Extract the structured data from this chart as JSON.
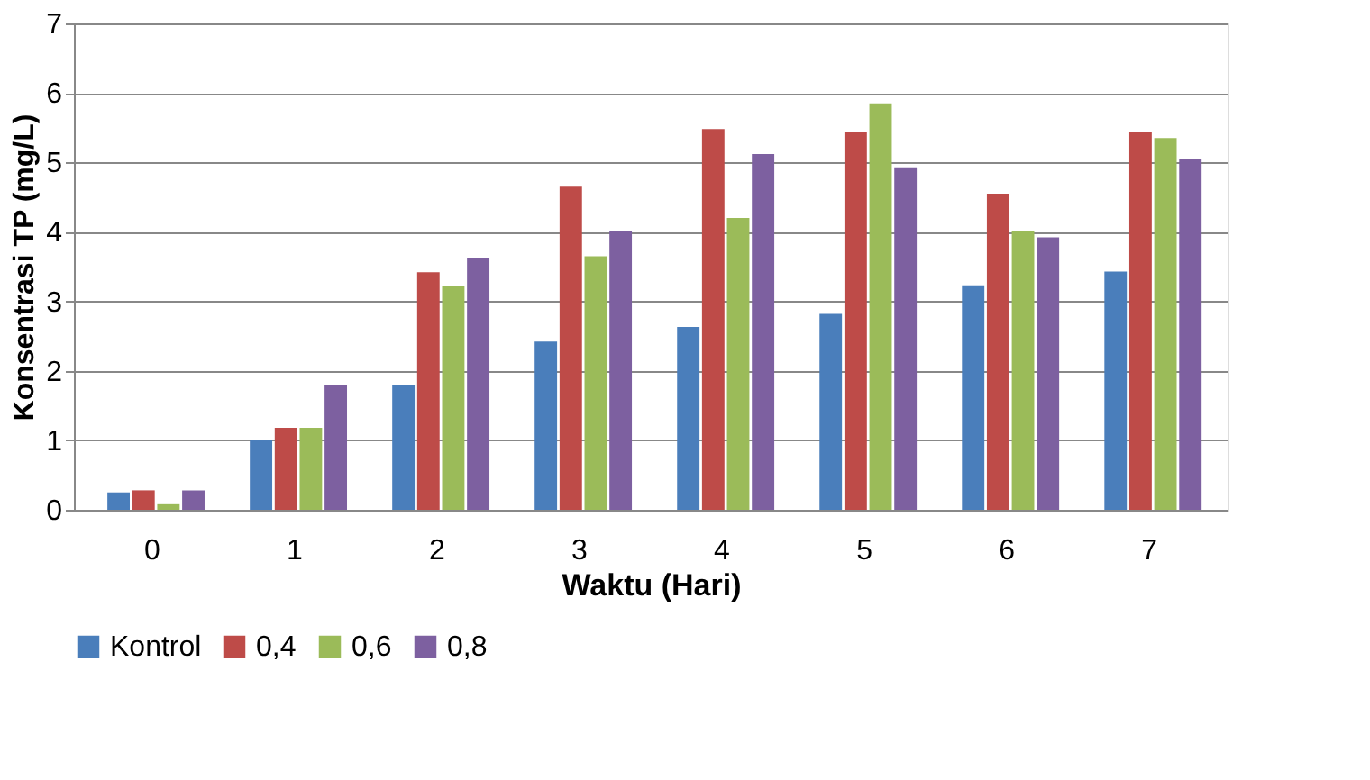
{
  "chart_data": {
    "type": "bar",
    "xlabel": "Waktu (Hari)",
    "ylabel": "Konsentrasi TP (mg/L)",
    "categories": [
      "0",
      "1",
      "2",
      "3",
      "4",
      "5",
      "6",
      "7"
    ],
    "series": [
      {
        "name": "Kontrol",
        "color": "#4a7ebb",
        "values": [
          0.25,
          1.0,
          1.8,
          2.42,
          2.63,
          2.82,
          3.23,
          3.43
        ]
      },
      {
        "name": "0,4",
        "color": "#be4b48",
        "values": [
          0.28,
          1.18,
          3.42,
          4.65,
          5.48,
          5.43,
          4.55,
          5.43
        ]
      },
      {
        "name": "0,6",
        "color": "#9bbb59",
        "values": [
          0.08,
          1.18,
          3.22,
          3.65,
          4.2,
          5.85,
          4.02,
          5.35
        ]
      },
      {
        "name": "0,8",
        "color": "#7d60a0",
        "values": [
          0.28,
          1.8,
          3.63,
          4.02,
          5.12,
          4.93,
          3.92,
          5.05
        ]
      }
    ],
    "ylim": [
      0,
      7
    ],
    "yticks": [
      0,
      1,
      2,
      3,
      4,
      5,
      6,
      7
    ],
    "grid": "y",
    "legend": "bottom"
  }
}
